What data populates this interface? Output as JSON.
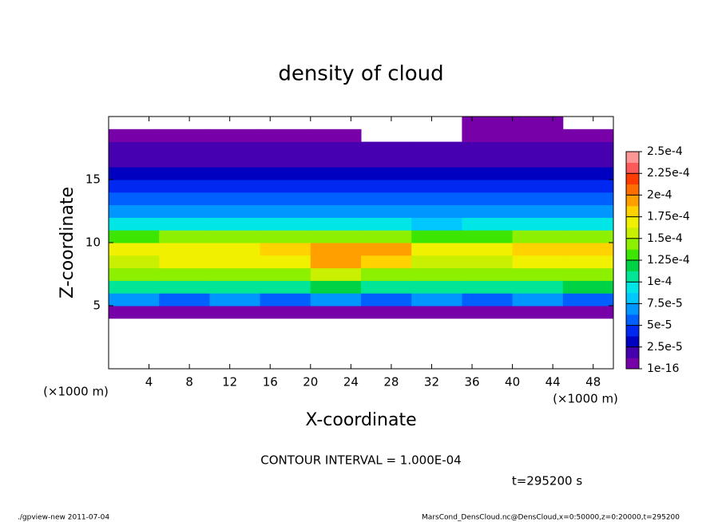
{
  "chart_data": {
    "type": "heatmap",
    "title": "density of cloud",
    "x_label": "X-coordinate",
    "y_label": "Z-coordinate",
    "x_unit": "(×1000 m)",
    "y_unit": "(×1000 m)",
    "xlim": [
      0,
      50
    ],
    "ylim": [
      0,
      20
    ],
    "xticks": [
      4,
      8,
      12,
      16,
      20,
      24,
      28,
      32,
      36,
      40,
      44,
      48
    ],
    "yticks": [
      5,
      10,
      15
    ],
    "x_bins": [
      0,
      5,
      10,
      15,
      20,
      25,
      30,
      35,
      40,
      45,
      50
    ],
    "y_bins": [
      4,
      5,
      6,
      7,
      8,
      9,
      10,
      11,
      12,
      13,
      14,
      15,
      16,
      17,
      18,
      19,
      20
    ],
    "values": [
      [
        1e-05,
        1e-05,
        1e-05,
        1e-05,
        1e-05,
        1e-05,
        1e-05,
        1e-05,
        1e-05,
        1e-05
      ],
      [
        6.5e-05,
        6e-05,
        6.5e-05,
        6e-05,
        6.5e-05,
        6e-05,
        6.5e-05,
        6e-05,
        6.5e-05,
        6e-05
      ],
      [
        0.00011,
        0.000105,
        0.00011,
        0.00011,
        0.000115,
        0.00011,
        0.000105,
        0.00011,
        0.00011,
        0.000115
      ],
      [
        0.00014,
        0.000145,
        0.000145,
        0.00015,
        0.000155,
        0.00015,
        0.00014,
        0.00014,
        0.00015,
        0.00015
      ],
      [
        0.00016,
        0.00017,
        0.00017,
        0.000175,
        0.00019,
        0.000185,
        0.00016,
        0.00016,
        0.000175,
        0.000175
      ],
      [
        0.000165,
        0.000175,
        0.000175,
        0.00018,
        0.000195,
        0.00019,
        0.000165,
        0.000165,
        0.00018,
        0.00018
      ],
      [
        0.000135,
        0.00014,
        0.00014,
        0.000145,
        0.00015,
        0.000145,
        0.000135,
        0.000135,
        0.00014,
        0.00014
      ],
      [
        9e-05,
        9e-05,
        9.5e-05,
        9e-05,
        9.5e-05,
        9e-05,
        8.5e-05,
        9e-05,
        9e-05,
        9e-05
      ],
      [
        7e-05,
        7e-05,
        7e-05,
        7e-05,
        7e-05,
        7e-05,
        7e-05,
        7e-05,
        7e-05,
        7e-05
      ],
      [
        5.5e-05,
        5.5e-05,
        5.5e-05,
        5.5e-05,
        5.5e-05,
        5.5e-05,
        5.5e-05,
        5.5e-05,
        5.5e-05,
        5.5e-05
      ],
      [
        4e-05,
        4e-05,
        4e-05,
        4e-05,
        4e-05,
        4e-05,
        4e-05,
        4e-05,
        4e-05,
        4e-05
      ],
      [
        2.8e-05,
        2.8e-05,
        2.8e-05,
        2.8e-05,
        2.8e-05,
        2.8e-05,
        2.8e-05,
        2.8e-05,
        2.8e-05,
        2.8e-05
      ],
      [
        2e-05,
        2e-05,
        2e-05,
        2e-05,
        2e-05,
        2e-05,
        2e-05,
        2e-05,
        2e-05,
        2e-05
      ],
      [
        1.3e-05,
        1.3e-05,
        1.3e-05,
        1.3e-05,
        1.3e-05,
        1.3e-05,
        1.3e-05,
        1.3e-05,
        1.3e-05,
        1.3e-05
      ],
      [
        5e-06,
        5e-06,
        5e-06,
        5e-06,
        5e-06,
        null,
        null,
        5e-06,
        5e-06,
        5e-06
      ],
      [
        null,
        null,
        null,
        null,
        null,
        null,
        null,
        5e-06,
        5e-06,
        null
      ]
    ],
    "clim": [
      1e-16,
      0.00025
    ],
    "colorbar_ticks": [
      {
        "value": 1e-16,
        "label": "1e-16"
      },
      {
        "value": 2.5e-05,
        "label": "2.5e-5"
      },
      {
        "value": 5e-05,
        "label": "5e-5"
      },
      {
        "value": 7.5e-05,
        "label": "7.5e-5"
      },
      {
        "value": 0.0001,
        "label": "1e-4"
      },
      {
        "value": 0.000125,
        "label": "1.25e-4"
      },
      {
        "value": 0.00015,
        "label": "1.5e-4"
      },
      {
        "value": 0.000175,
        "label": "1.75e-4"
      },
      {
        "value": 0.0002,
        "label": "2e-4"
      },
      {
        "value": 0.000225,
        "label": "2.25e-4"
      },
      {
        "value": 0.00025,
        "label": "2.5e-4"
      }
    ],
    "colors": [
      "#7800a8",
      "#4600b0",
      "#0000c0",
      "#0028f0",
      "#0060ff",
      "#0096ff",
      "#00c8ff",
      "#00e6e6",
      "#00e696",
      "#00d246",
      "#3ce600",
      "#8cf000",
      "#c8f000",
      "#f0f000",
      "#ffd200",
      "#ffa000",
      "#ff6e00",
      "#ff3c00",
      "#ff5a5a",
      "#ff9696"
    ],
    "annotations": {
      "contour_interval": "CONTOUR INTERVAL = 1.000E-04",
      "time": "t=295200 s",
      "footer_left": "./gpview-new  2011-07-04",
      "footer_right": "MarsCond_DensCloud.nc@DensCloud,x=0:50000,z=0:20000,t=295200"
    }
  }
}
